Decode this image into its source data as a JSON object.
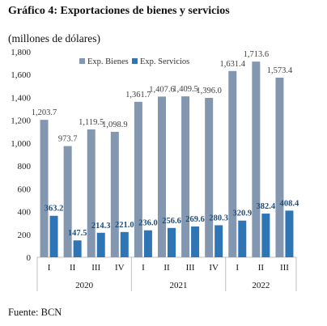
{
  "title": "Gráfico 4: Exportaciones de bienes y servicios",
  "subtitle": "(millones de dólares)",
  "source": "Fuente: BCN",
  "chart_data": {
    "type": "bar",
    "categories": [
      "I",
      "II",
      "III",
      "IV",
      "I",
      "II",
      "III",
      "IV",
      "I",
      "II",
      "III"
    ],
    "years": [
      {
        "label": "2020",
        "count": 4
      },
      {
        "label": "2021",
        "count": 4
      },
      {
        "label": "2022",
        "count": 3
      }
    ],
    "series": [
      {
        "name": "Exp. Bienes",
        "color": "#8497b0",
        "values": [
          1203.7,
          973.7,
          1119.5,
          1098.9,
          1361.7,
          1407.6,
          1409.5,
          1396.0,
          1631.4,
          1713.6,
          1573.4
        ],
        "labels": [
          "1,203.7",
          "973.7",
          "1,119.5",
          "1,098.9",
          "1,361.7",
          "1,407.6",
          "1,409.5",
          "1,396.0",
          "1,631.4",
          "1,713.6",
          "1,573.4"
        ]
      },
      {
        "name": "Exp. Servicios",
        "color": "#2e75b6",
        "values": [
          363.2,
          147.5,
          214.3,
          221.0,
          236.0,
          256.6,
          269.6,
          280.3,
          320.9,
          382.4,
          408.4
        ],
        "labels": [
          "363.2",
          "147.5",
          "214.3",
          "221.0",
          "236.0",
          "256.6",
          "269.6",
          "280.3",
          "320.9",
          "382.4",
          "408.4"
        ]
      }
    ],
    "ylim": [
      0,
      1800
    ],
    "yticks": [
      0,
      200,
      400,
      600,
      800,
      1000,
      1200,
      1400,
      1600,
      1800
    ],
    "ytick_labels": [
      "0",
      "200",
      "400",
      "600",
      "800",
      "1,000",
      "1,200",
      "1,400",
      "1,600",
      "1,800"
    ],
    "grid": false,
    "legend_position": "top-left"
  }
}
